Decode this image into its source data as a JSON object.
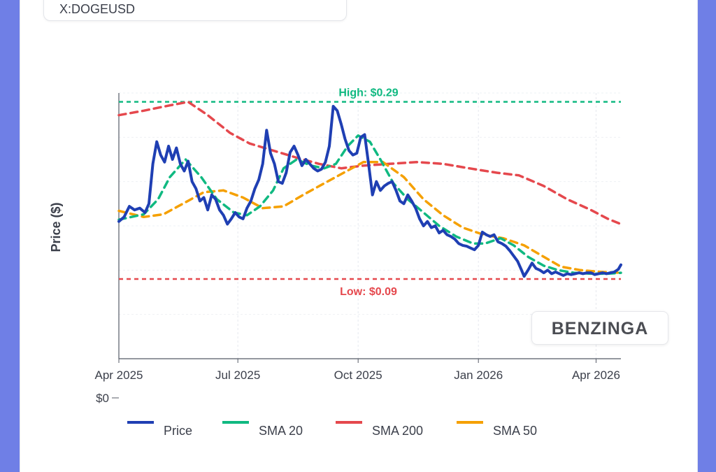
{
  "ticker": "X:DOGEUSD",
  "watermark": "BENZINGA",
  "chart_data": {
    "type": "line",
    "title": "",
    "xlabel": "",
    "ylabel": "Price ($)",
    "y_tick_labels": [
      "$0"
    ],
    "x_ticks": [
      {
        "label": "Apr 2025",
        "date": "2025-04-01"
      },
      {
        "label": "Jul 2025",
        "date": "2025-07-01"
      },
      {
        "label": "Oct 2025",
        "date": "2025-10-01"
      },
      {
        "label": "Jan 2026",
        "date": "2026-01-01"
      },
      {
        "label": "Apr 2026",
        "date": "2026-04-01"
      }
    ],
    "xlim": [
      "2025-04-01",
      "2026-04-20"
    ],
    "ylim": [
      0,
      0.3
    ],
    "grid": true,
    "legend_position": "bottom",
    "reference_lines": [
      {
        "label": "High: $0.29",
        "value": 0.29,
        "color": "#10b981"
      },
      {
        "label": "Low: $0.09",
        "value": 0.09,
        "color": "#e5484d"
      }
    ],
    "series": [
      {
        "name": "Price",
        "color": "#1f3fb3",
        "points": [
          [
            "2025-04-01",
            0.155
          ],
          [
            "2025-04-05",
            0.16
          ],
          [
            "2025-04-09",
            0.172
          ],
          [
            "2025-04-13",
            0.168
          ],
          [
            "2025-04-17",
            0.17
          ],
          [
            "2025-04-21",
            0.165
          ],
          [
            "2025-04-24",
            0.175
          ],
          [
            "2025-04-27",
            0.22
          ],
          [
            "2025-04-30",
            0.245
          ],
          [
            "2025-05-03",
            0.23
          ],
          [
            "2025-05-06",
            0.222
          ],
          [
            "2025-05-09",
            0.24
          ],
          [
            "2025-05-12",
            0.225
          ],
          [
            "2025-05-15",
            0.238
          ],
          [
            "2025-05-18",
            0.22
          ],
          [
            "2025-05-21",
            0.212
          ],
          [
            "2025-05-24",
            0.223
          ],
          [
            "2025-05-27",
            0.2
          ],
          [
            "2025-05-30",
            0.192
          ],
          [
            "2025-06-02",
            0.178
          ],
          [
            "2025-06-05",
            0.182
          ],
          [
            "2025-06-08",
            0.168
          ],
          [
            "2025-06-11",
            0.185
          ],
          [
            "2025-06-14",
            0.18
          ],
          [
            "2025-06-17",
            0.168
          ],
          [
            "2025-06-20",
            0.162
          ],
          [
            "2025-06-23",
            0.152
          ],
          [
            "2025-06-26",
            0.158
          ],
          [
            "2025-06-29",
            0.165
          ],
          [
            "2025-07-02",
            0.16
          ],
          [
            "2025-07-05",
            0.158
          ],
          [
            "2025-07-08",
            0.17
          ],
          [
            "2025-07-11",
            0.178
          ],
          [
            "2025-07-14",
            0.192
          ],
          [
            "2025-07-17",
            0.202
          ],
          [
            "2025-07-20",
            0.22
          ],
          [
            "2025-07-23",
            0.258
          ],
          [
            "2025-07-26",
            0.232
          ],
          [
            "2025-07-29",
            0.22
          ],
          [
            "2025-08-01",
            0.2
          ],
          [
            "2025-08-04",
            0.198
          ],
          [
            "2025-08-07",
            0.21
          ],
          [
            "2025-08-10",
            0.233
          ],
          [
            "2025-08-13",
            0.24
          ],
          [
            "2025-08-16",
            0.23
          ],
          [
            "2025-08-19",
            0.218
          ],
          [
            "2025-08-22",
            0.225
          ],
          [
            "2025-08-25",
            0.22
          ],
          [
            "2025-08-28",
            0.215
          ],
          [
            "2025-08-31",
            0.212
          ],
          [
            "2025-09-03",
            0.214
          ],
          [
            "2025-09-06",
            0.222
          ],
          [
            "2025-09-09",
            0.24
          ],
          [
            "2025-09-12",
            0.285
          ],
          [
            "2025-09-15",
            0.28
          ],
          [
            "2025-09-18",
            0.265
          ],
          [
            "2025-09-21",
            0.248
          ],
          [
            "2025-09-24",
            0.235
          ],
          [
            "2025-09-27",
            0.23
          ],
          [
            "2025-09-30",
            0.232
          ],
          [
            "2025-10-03",
            0.25
          ],
          [
            "2025-10-06",
            0.253
          ],
          [
            "2025-10-09",
            0.22
          ],
          [
            "2025-10-12",
            0.185
          ],
          [
            "2025-10-15",
            0.2
          ],
          [
            "2025-10-18",
            0.19
          ],
          [
            "2025-10-21",
            0.195
          ],
          [
            "2025-10-24",
            0.198
          ],
          [
            "2025-10-27",
            0.2
          ],
          [
            "2025-10-30",
            0.19
          ],
          [
            "2025-11-02",
            0.178
          ],
          [
            "2025-11-05",
            0.175
          ],
          [
            "2025-11-08",
            0.185
          ],
          [
            "2025-11-11",
            0.178
          ],
          [
            "2025-11-14",
            0.17
          ],
          [
            "2025-11-17",
            0.158
          ],
          [
            "2025-11-20",
            0.15
          ],
          [
            "2025-11-23",
            0.155
          ],
          [
            "2025-11-26",
            0.148
          ],
          [
            "2025-11-29",
            0.15
          ],
          [
            "2025-12-02",
            0.142
          ],
          [
            "2025-12-05",
            0.145
          ],
          [
            "2025-12-08",
            0.14
          ],
          [
            "2025-12-11",
            0.138
          ],
          [
            "2025-12-14",
            0.135
          ],
          [
            "2025-12-17",
            0.13
          ],
          [
            "2025-12-20",
            0.128
          ],
          [
            "2025-12-23",
            0.127
          ],
          [
            "2025-12-26",
            0.125
          ],
          [
            "2025-12-29",
            0.123
          ],
          [
            "2026-01-01",
            0.128
          ],
          [
            "2026-01-04",
            0.143
          ],
          [
            "2026-01-07",
            0.14
          ],
          [
            "2026-01-10",
            0.138
          ],
          [
            "2026-01-13",
            0.14
          ],
          [
            "2026-01-16",
            0.132
          ],
          [
            "2026-01-19",
            0.13
          ],
          [
            "2026-01-22",
            0.127
          ],
          [
            "2026-01-25",
            0.122
          ],
          [
            "2026-01-28",
            0.116
          ],
          [
            "2026-01-31",
            0.11
          ],
          [
            "2026-02-03",
            0.1
          ],
          [
            "2026-02-05",
            0.093
          ],
          [
            "2026-02-08",
            0.1
          ],
          [
            "2026-02-11",
            0.108
          ],
          [
            "2026-02-14",
            0.102
          ],
          [
            "2026-02-17",
            0.1
          ],
          [
            "2026-02-20",
            0.097
          ],
          [
            "2026-02-23",
            0.1
          ],
          [
            "2026-02-26",
            0.096
          ],
          [
            "2026-03-01",
            0.098
          ],
          [
            "2026-03-04",
            0.096
          ],
          [
            "2026-03-07",
            0.094
          ],
          [
            "2026-03-10",
            0.096
          ],
          [
            "2026-03-13",
            0.095
          ],
          [
            "2026-03-16",
            0.096
          ],
          [
            "2026-03-19",
            0.097
          ],
          [
            "2026-03-22",
            0.096
          ],
          [
            "2026-03-25",
            0.097
          ],
          [
            "2026-03-28",
            0.097
          ],
          [
            "2026-03-31",
            0.095
          ],
          [
            "2026-04-03",
            0.096
          ],
          [
            "2026-04-06",
            0.097
          ],
          [
            "2026-04-09",
            0.096
          ],
          [
            "2026-04-12",
            0.097
          ],
          [
            "2026-04-15",
            0.098
          ],
          [
            "2026-04-18",
            0.101
          ],
          [
            "2026-04-20",
            0.106
          ]
        ]
      },
      {
        "name": "SMA 20",
        "color": "#10b981",
        "points": [
          [
            "2025-04-01",
            0.157
          ],
          [
            "2025-04-20",
            0.163
          ],
          [
            "2025-05-01",
            0.18
          ],
          [
            "2025-05-10",
            0.205
          ],
          [
            "2025-05-22",
            0.225
          ],
          [
            "2025-06-03",
            0.205
          ],
          [
            "2025-06-15",
            0.18
          ],
          [
            "2025-06-28",
            0.165
          ],
          [
            "2025-07-08",
            0.162
          ],
          [
            "2025-07-18",
            0.172
          ],
          [
            "2025-07-28",
            0.19
          ],
          [
            "2025-08-05",
            0.215
          ],
          [
            "2025-08-15",
            0.225
          ],
          [
            "2025-08-26",
            0.218
          ],
          [
            "2025-09-05",
            0.215
          ],
          [
            "2025-09-14",
            0.22
          ],
          [
            "2025-09-23",
            0.24
          ],
          [
            "2025-10-01",
            0.252
          ],
          [
            "2025-10-10",
            0.245
          ],
          [
            "2025-10-18",
            0.225
          ],
          [
            "2025-10-28",
            0.198
          ],
          [
            "2025-11-08",
            0.18
          ],
          [
            "2025-11-20",
            0.165
          ],
          [
            "2025-12-02",
            0.15
          ],
          [
            "2025-12-15",
            0.138
          ],
          [
            "2025-12-28",
            0.13
          ],
          [
            "2026-01-06",
            0.13
          ],
          [
            "2026-01-18",
            0.136
          ],
          [
            "2026-01-28",
            0.128
          ],
          [
            "2026-02-08",
            0.115
          ],
          [
            "2026-02-20",
            0.105
          ],
          [
            "2026-03-03",
            0.1
          ],
          [
            "2026-03-15",
            0.097
          ],
          [
            "2026-03-28",
            0.096
          ],
          [
            "2026-04-10",
            0.096
          ],
          [
            "2026-04-20",
            0.097
          ]
        ]
      },
      {
        "name": "SMA 200",
        "color": "#e5484d",
        "points": [
          [
            "2025-04-01",
            0.275
          ],
          [
            "2025-04-20",
            0.28
          ],
          [
            "2025-05-10",
            0.286
          ],
          [
            "2025-05-24",
            0.29
          ],
          [
            "2025-06-08",
            0.275
          ],
          [
            "2025-06-25",
            0.255
          ],
          [
            "2025-07-10",
            0.243
          ],
          [
            "2025-07-28",
            0.235
          ],
          [
            "2025-08-15",
            0.227
          ],
          [
            "2025-09-01",
            0.22
          ],
          [
            "2025-09-18",
            0.215
          ],
          [
            "2025-10-05",
            0.218
          ],
          [
            "2025-10-25",
            0.22
          ],
          [
            "2025-11-15",
            0.222
          ],
          [
            "2025-12-05",
            0.22
          ],
          [
            "2025-12-25",
            0.215
          ],
          [
            "2026-01-15",
            0.21
          ],
          [
            "2026-02-01",
            0.207
          ],
          [
            "2026-02-20",
            0.195
          ],
          [
            "2026-03-10",
            0.18
          ],
          [
            "2026-03-28",
            0.168
          ],
          [
            "2026-04-10",
            0.158
          ],
          [
            "2026-04-20",
            0.152
          ]
        ]
      },
      {
        "name": "SMA 50",
        "color": "#f5a000",
        "points": [
          [
            "2025-04-01",
            0.167
          ],
          [
            "2025-04-20",
            0.16
          ],
          [
            "2025-05-05",
            0.163
          ],
          [
            "2025-05-20",
            0.175
          ],
          [
            "2025-06-05",
            0.188
          ],
          [
            "2025-06-20",
            0.19
          ],
          [
            "2025-07-05",
            0.182
          ],
          [
            "2025-07-20",
            0.17
          ],
          [
            "2025-08-05",
            0.172
          ],
          [
            "2025-08-20",
            0.185
          ],
          [
            "2025-09-05",
            0.198
          ],
          [
            "2025-09-20",
            0.21
          ],
          [
            "2025-10-05",
            0.222
          ],
          [
            "2025-10-20",
            0.222
          ],
          [
            "2025-11-05",
            0.205
          ],
          [
            "2025-11-20",
            0.18
          ],
          [
            "2025-12-05",
            0.162
          ],
          [
            "2025-12-20",
            0.148
          ],
          [
            "2026-01-05",
            0.14
          ],
          [
            "2026-01-20",
            0.136
          ],
          [
            "2026-02-05",
            0.128
          ],
          [
            "2026-02-20",
            0.115
          ],
          [
            "2026-03-05",
            0.104
          ],
          [
            "2026-03-20",
            0.1
          ],
          [
            "2026-04-05",
            0.098
          ],
          [
            "2026-04-20",
            0.097
          ]
        ]
      }
    ]
  }
}
